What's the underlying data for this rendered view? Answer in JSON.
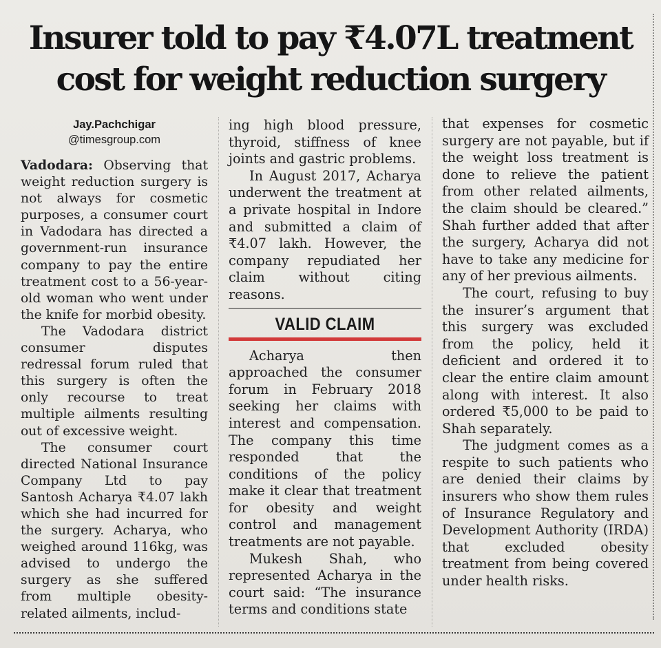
{
  "headline": {
    "line1": "Insurer told to pay ₹4.07L treatment",
    "line2": "cost for weight reduction surgery"
  },
  "byline": {
    "name": "Jay.Pachchigar",
    "handle": "@timesgroup.com"
  },
  "article": {
    "dateline": "Vadodara:",
    "col1": [
      "Observing that weight reduction surgery is not always for cosmetic purposes, a consumer court in Vadodara has directed a government-run insurance company to pay the entire treatment cost to a 56-year-old woman who went under the knife for morbid obesity.",
      "The Vadodara district consumer disputes redressal forum ruled that this surgery is often the only recourse to treat multiple ailments resulting out of excessive weight.",
      "The consumer court directed National Insurance Company Ltd to pay Santosh Acharya ₹4.07 lakh which she had incurred for the surgery. Acharya, who weighed around 116kg, was advised to undergo the surgery as she suffered from multiple obesity-related ailments, includ-"
    ],
    "col2_top": [
      "ing high blood pressure, thyroid, stiffness of knee joints and gastric problems.",
      "In August 2017, Acharya underwent the treatment at a private hospital in Indore and submitted a claim of ₹4.07 lakh. However, the company repudiated her claim without citing reasons."
    ],
    "subhead": "VALID CLAIM",
    "col2_bottom": [
      "Acharya then approached the consumer forum in February 2018 seeking her claims with interest and compensation. The company this time responded that the conditions of the policy make it clear that treatment for obesity and weight control and management treatments are not payable.",
      "Mukesh Shah, who represented Acharya in the court said: “The insurance terms and conditions state"
    ],
    "col3": [
      "that expenses for cosmetic surgery are not payable, but if the weight loss treatment is done to relieve the patient from other related ailments, the claim should be cleared.” Shah further added that after the surgery, Acharya did not have to take any medicine for any of her previous ailments.",
      "The court, refusing to buy the insurer’s argument that this surgery was excluded from the policy, held it deficient and ordered it to clear the entire claim amount along with interest. It also ordered ₹5,000 to be paid to Shah separately.",
      "The judgment comes as a respite to such patients who are denied their claims by insurers who show them rules of Insurance Regulatory and Development Authority (IRDA) that excluded obesity treatment from being covered under health risks."
    ]
  },
  "colors": {
    "paper": "#e9e7e2",
    "ink": "#1c1c1e",
    "accent_rule": "#d23a3a"
  }
}
